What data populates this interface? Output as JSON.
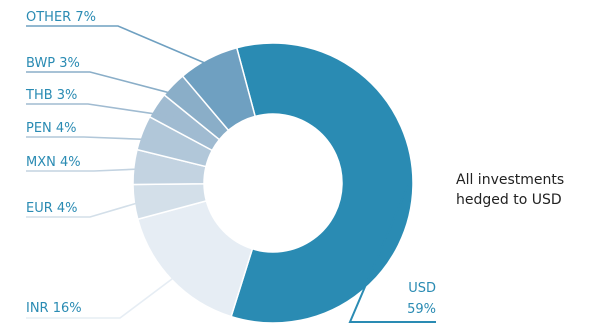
{
  "chart_data": {
    "type": "pie",
    "subtype": "donut",
    "categories": [
      "USD",
      "INR",
      "EUR",
      "MXN",
      "PEN",
      "THB",
      "BWP",
      "OTHER"
    ],
    "values": [
      59,
      16,
      4,
      4,
      4,
      3,
      3,
      7
    ],
    "colors": [
      "#2a8bb3",
      "#e6edf4",
      "#d3dfe9",
      "#c3d3e1",
      "#b1c7d9",
      "#a0bbd1",
      "#8aaec8",
      "#6fa0c1"
    ],
    "labels": [
      {
        "name": "OTHER",
        "pct": "7%"
      },
      {
        "name": "BWP",
        "pct": "3%"
      },
      {
        "name": "THB",
        "pct": "3%"
      },
      {
        "name": "PEN",
        "pct": "4%"
      },
      {
        "name": "MXN",
        "pct": "4%"
      },
      {
        "name": "EUR",
        "pct": "4%"
      },
      {
        "name": "INR",
        "pct": "16%"
      },
      {
        "name": "USD",
        "pct": "59%"
      }
    ],
    "label_color": "#2a8bb3"
  },
  "note": {
    "line1": "All investments",
    "line2": "hedged to USD"
  }
}
